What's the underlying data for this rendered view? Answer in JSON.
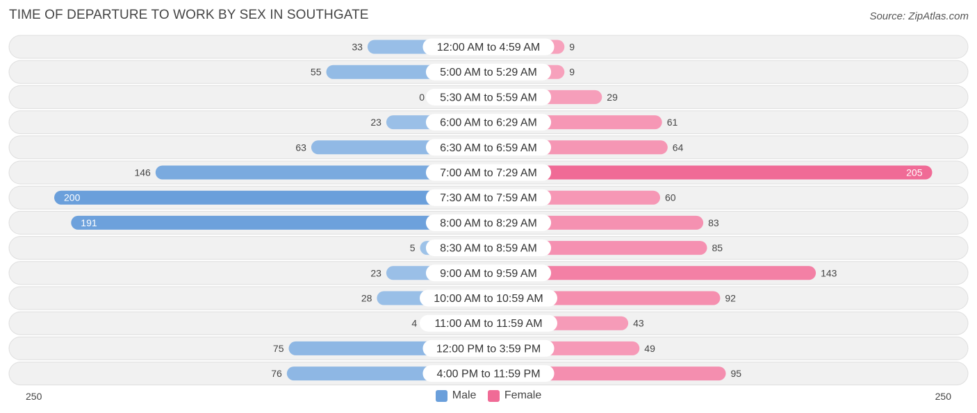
{
  "title": "TIME OF DEPARTURE TO WORK BY SEX IN SOUTHGATE",
  "source": "Source: ZipAtlas.com",
  "colors": {
    "male_light": "#9ec2e8",
    "male_strong": "#6a9fdb",
    "female_light": "#f7a2bd",
    "female_strong": "#f06b96"
  },
  "chart_data": {
    "type": "bar",
    "orientation": "horizontal-diverging",
    "categories": [
      "12:00 AM to 4:59 AM",
      "5:00 AM to 5:29 AM",
      "5:30 AM to 5:59 AM",
      "6:00 AM to 6:29 AM",
      "6:30 AM to 6:59 AM",
      "7:00 AM to 7:29 AM",
      "7:30 AM to 7:59 AM",
      "8:00 AM to 8:29 AM",
      "8:30 AM to 8:59 AM",
      "9:00 AM to 9:59 AM",
      "10:00 AM to 10:59 AM",
      "11:00 AM to 11:59 AM",
      "12:00 PM to 3:59 PM",
      "4:00 PM to 11:59 PM"
    ],
    "series": [
      {
        "name": "Male",
        "values": [
          33,
          55,
          0,
          23,
          63,
          146,
          200,
          191,
          5,
          23,
          28,
          4,
          75,
          76
        ]
      },
      {
        "name": "Female",
        "values": [
          9,
          9,
          29,
          61,
          64,
          205,
          60,
          83,
          85,
          143,
          92,
          43,
          49,
          95
        ]
      }
    ],
    "xlim": [
      -250,
      250
    ],
    "axis_labels": {
      "left": "250",
      "right": "250"
    },
    "legend": {
      "position": "bottom-center",
      "items": [
        "Male",
        "Female"
      ]
    }
  }
}
